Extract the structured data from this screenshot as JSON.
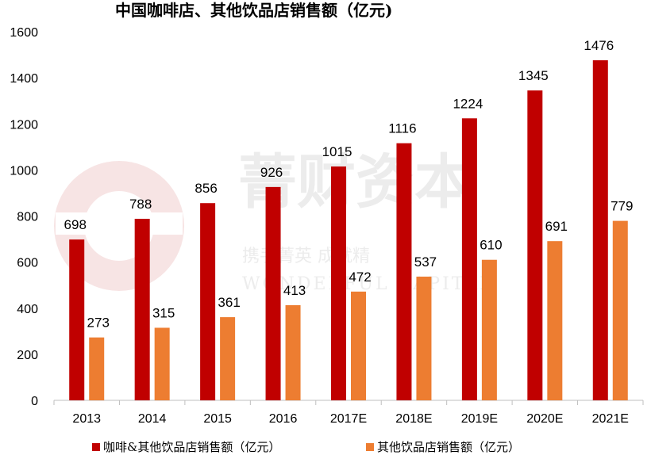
{
  "chart_data": {
    "type": "bar",
    "title": "中国咖啡店、其他饮品店销售额（亿元)",
    "categories": [
      "2013",
      "2014",
      "2015",
      "2016",
      "2017E",
      "2018E",
      "2019E",
      "2020E",
      "2021E"
    ],
    "series": [
      {
        "name": "咖啡&其他饮品店销售额（亿元）",
        "color": "#c00000",
        "values": [
          698,
          788,
          856,
          926,
          1015,
          1116,
          1224,
          1345,
          1476
        ]
      },
      {
        "name": "其他饮品店销售额（亿元）",
        "color": "#ed7d31",
        "values": [
          273,
          315,
          361,
          413,
          472,
          537,
          610,
          691,
          779
        ]
      }
    ],
    "ylim": [
      0,
      1600
    ],
    "yticks": [
      0,
      200,
      400,
      600,
      800,
      1000,
      1200,
      1400,
      1600
    ],
    "grid": false,
    "legend_position": "bottom",
    "xlabel": "",
    "ylabel": ""
  },
  "watermark": {
    "main": "菁财资本",
    "slogan": "携手菁英 成就精",
    "english": "WONDERFUL CAPITAL"
  }
}
